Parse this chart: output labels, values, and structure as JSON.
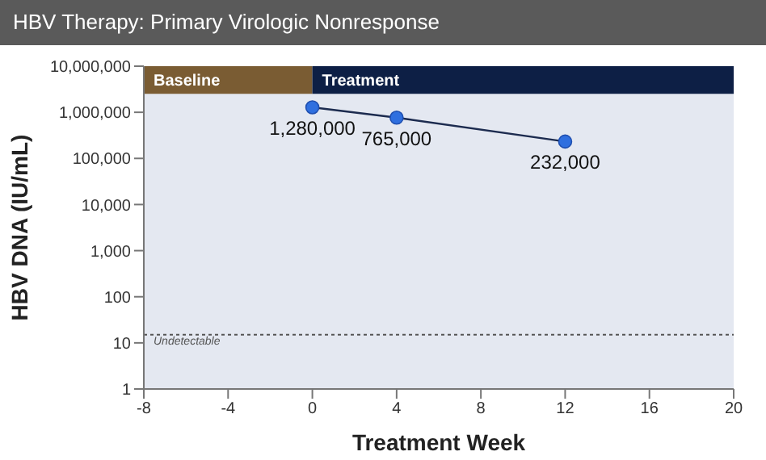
{
  "chart_data": {
    "type": "line",
    "title": "HBV Therapy: Primary Virologic Nonresponse",
    "xlabel": "Treatment Week",
    "ylabel": "HBV DNA (IU/mL)",
    "log": "y",
    "x": [
      0,
      4,
      12
    ],
    "series": [
      {
        "color": "#2f6fdf",
        "values": [
          1280000,
          765000,
          232000
        ],
        "value_labels": [
          "1,280,000",
          "765,000",
          "232,000"
        ]
      }
    ],
    "xlim": [
      -8,
      20
    ],
    "xticks": [
      -8,
      -4,
      0,
      4,
      8,
      12,
      16,
      20
    ],
    "ylim": [
      1,
      10000000
    ],
    "yticks": [
      {
        "value": 1,
        "label": "1"
      },
      {
        "value": 10,
        "label": "10"
      },
      {
        "value": 100,
        "label": "100"
      },
      {
        "value": 1000,
        "label": "1,000"
      },
      {
        "value": 10000,
        "label": "10,000"
      },
      {
        "value": 100000,
        "label": "100,000"
      },
      {
        "value": 1000000,
        "label": "1,000,000"
      },
      {
        "value": 10000000,
        "label": "10,000,000"
      }
    ],
    "ref_lines": [
      {
        "axis": "y",
        "value": 15,
        "label": "Undetectable",
        "color": "#555555",
        "line_style": "dotted"
      }
    ],
    "bands": [
      {
        "axis": "x",
        "from": -8,
        "to": 0,
        "label": "Baseline",
        "color": "#7a5c33"
      },
      {
        "axis": "x",
        "from": 0,
        "to": 20,
        "label": "Treatment",
        "color": "#0d1f45"
      }
    ],
    "marker": "circle",
    "legend": false
  }
}
